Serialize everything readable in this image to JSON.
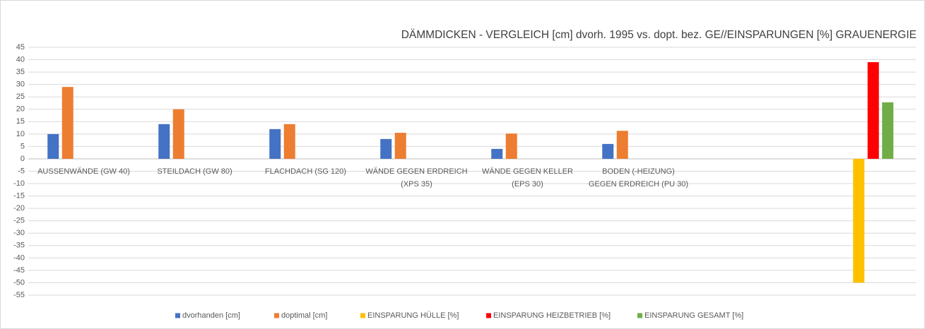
{
  "chart_data": {
    "type": "bar",
    "title": "DÄMMDICKEN - VERGLEICH [cm] dvorh. 1995 vs. dopt. bez. GE//EINSPARUNGEN [%] GRAUENERGIE",
    "categories": [
      "AUSSENWÄNDE (GW 40)",
      "STEILDACH (GW 80)",
      "FLACHDACH (SG 120)",
      "WÄNDE GEGEN ERDREICH\n(XPS 35)",
      "WÄNDE GEGEN KELLER\n(EPS 30)",
      "BODEN (-HEIZUNG)\nGEGEN ERDREICH (PU 30)",
      null,
      null
    ],
    "series": [
      {
        "name": "dvorhanden [cm]",
        "color": "#4472c4",
        "values": [
          10,
          14,
          12,
          8,
          4,
          6,
          null,
          null
        ]
      },
      {
        "name": "doptimal [cm]",
        "color": "#ed7d31",
        "values": [
          29,
          20,
          14,
          10.5,
          10.2,
          11.3,
          null,
          null
        ]
      },
      {
        "name": "EINSPARUNG HÜLLE [%]",
        "color": "#ffc000",
        "values": [
          null,
          null,
          null,
          null,
          null,
          null,
          null,
          -50
        ]
      },
      {
        "name": "EINSPARUNG HEIZBETRIEB [%]",
        "color": "#ff0000",
        "values": [
          null,
          null,
          null,
          null,
          null,
          null,
          null,
          39
        ]
      },
      {
        "name": "EINSPARUNG GESAMT [%]",
        "color": "#70ad47",
        "values": [
          null,
          null,
          null,
          null,
          null,
          null,
          null,
          22.8
        ]
      }
    ],
    "ylim": [
      -55,
      45
    ],
    "yticks": [
      -55,
      -50,
      -45,
      -40,
      -35,
      -30,
      -25,
      -20,
      -15,
      -10,
      -5,
      0,
      5,
      10,
      15,
      20,
      25,
      30,
      35,
      40,
      45
    ],
    "grid": true,
    "legend": "bottom"
  }
}
